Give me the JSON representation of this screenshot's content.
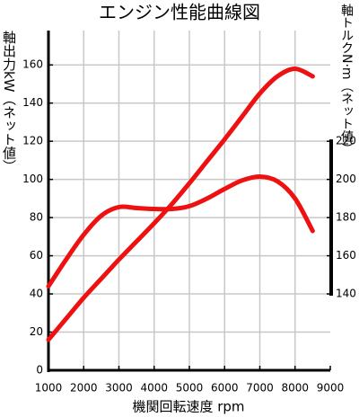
{
  "chart_data": {
    "type": "line",
    "title": "エンジン性能曲線図",
    "x_label": "機関回転速度 rpm",
    "y_label": "軸出力kW（ネット値）",
    "y2_label": "軸トルクN·m（ネット値）",
    "x": [
      1000,
      1500,
      2000,
      2500,
      3000,
      3500,
      4000,
      4500,
      5000,
      5500,
      6000,
      6500,
      7000,
      7500,
      8000,
      8500
    ],
    "series": [
      {
        "color": "#ee1111",
        "values": [
          16,
          27,
          38,
          48,
          58,
          67.5,
          77,
          87,
          98,
          109.5,
          121,
          133,
          145,
          154,
          158,
          154
        ]
      },
      {
        "color": "#ee1111",
        "axis": "y2",
        "values": [
          144,
          158,
          171,
          181,
          185.5,
          185,
          184.5,
          184.5,
          186,
          190,
          195,
          199.5,
          201.5,
          199,
          190,
          173
        ]
      }
    ],
    "xlim": [
      1000,
      9000
    ],
    "xticks": [
      1000,
      2000,
      3000,
      4000,
      5000,
      6000,
      7000,
      8000,
      9000
    ],
    "ylim": [
      0,
      178
    ],
    "yticks": [
      0,
      20,
      40,
      60,
      80,
      100,
      120,
      140,
      160
    ],
    "y2lim": [
      100,
      278
    ],
    "y2ticks": [
      140,
      160,
      180,
      200,
      220
    ],
    "grid": true
  }
}
